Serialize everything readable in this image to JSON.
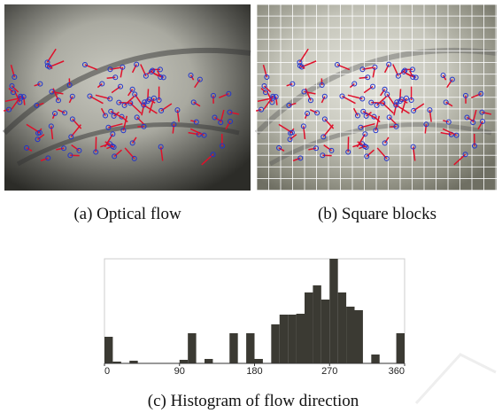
{
  "figures": [
    {
      "caption": "(a) Optical flow"
    },
    {
      "caption": "(b) Square blocks"
    }
  ],
  "chart_data": {
    "type": "histogram",
    "caption": "(c) Histogram of flow direction",
    "bins": [
      0,
      10,
      20,
      30,
      40,
      50,
      60,
      70,
      80,
      90,
      100,
      110,
      120,
      130,
      140,
      150,
      160,
      170,
      180,
      190,
      200,
      210,
      220,
      230,
      240,
      250,
      260,
      270,
      280,
      290,
      300,
      310,
      320,
      330,
      340,
      350,
      360
    ],
    "values": [
      30,
      2,
      0,
      3,
      0,
      0,
      0,
      0,
      0,
      4,
      34,
      0,
      5,
      0,
      0,
      34,
      0,
      34,
      5,
      0,
      44,
      55,
      55,
      56,
      80,
      88,
      72,
      118,
      80,
      64,
      60,
      0,
      10,
      0,
      0,
      34
    ],
    "xlim": [
      0,
      360
    ],
    "xticks": [
      0,
      90,
      180,
      270,
      360
    ],
    "ylim": [
      0,
      118
    ],
    "color": "#3b3a33"
  }
}
